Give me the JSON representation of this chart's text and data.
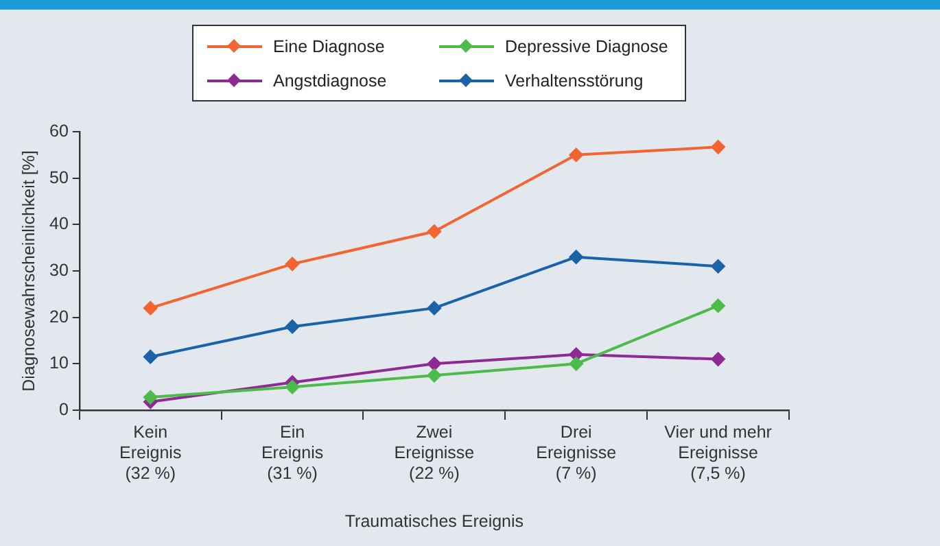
{
  "chart_data": {
    "type": "line",
    "xlabel": "Traumatisches Ereignis",
    "ylabel": "Diagnosewahrscheinlichkeit [%]",
    "categories": [
      "Kein\nEreignis\n(32 %)",
      "Ein\nEreignis\n(31 %)",
      "Zwei\nEreignisse\n(22 %)",
      "Drei\nEreignisse\n(7 %)",
      "Vier und mehr\nEreignisse\n(7,5 %)"
    ],
    "series": [
      {
        "name": "Eine Diagnose",
        "color": "#f26532",
        "values": [
          22,
          31.5,
          38.5,
          55,
          56.7
        ]
      },
      {
        "name": "Depressive Diagnose",
        "color": "#4cbb4a",
        "values": [
          2.8,
          5,
          7.5,
          10,
          22.5
        ]
      },
      {
        "name": "Angstdiagnose",
        "color": "#8e2a93",
        "values": [
          1.8,
          6,
          10,
          12,
          11
        ]
      },
      {
        "name": "Verhaltensstörung",
        "color": "#1b63a8",
        "values": [
          11.5,
          18,
          22,
          33,
          31
        ]
      }
    ],
    "ylim": [
      0,
      60
    ],
    "yticks": [
      0,
      10,
      20,
      30,
      40,
      50,
      60
    ],
    "grid": false,
    "legend": "top",
    "marker": "diamond",
    "line_style": "solid"
  }
}
